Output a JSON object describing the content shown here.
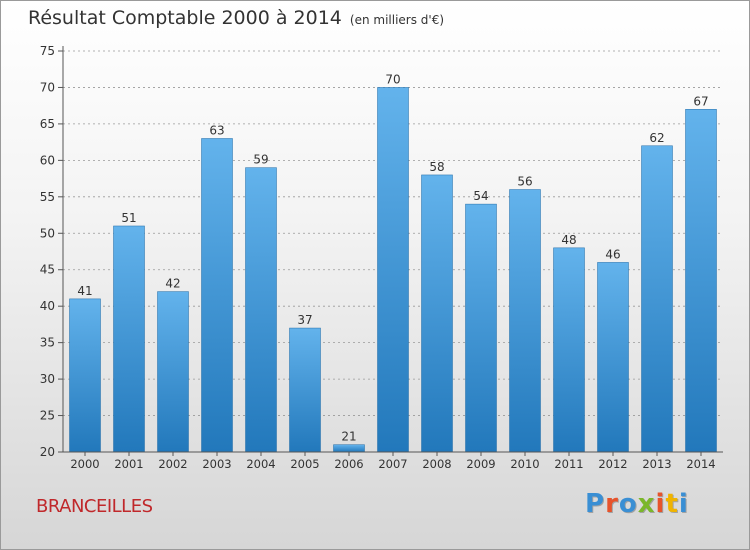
{
  "header": {
    "title": "Résultat Comptable 2000 à 2014",
    "unit": "(en milliers d'€)"
  },
  "footer": {
    "commune": "BRANCEILLES",
    "logo": "Proxiti",
    "logo_colors": [
      "#3a8fd4",
      "#e7532b",
      "#3a8fd4",
      "#7bb72a",
      "#e7532b",
      "#f0b400",
      "#3a8fd4"
    ]
  },
  "colors": {
    "bar_light": "#63b3ec",
    "bar_dark": "#2278bb",
    "axis": "#555555",
    "grid": "#999999"
  },
  "chart_data": {
    "type": "bar",
    "categories": [
      "2000",
      "2001",
      "2002",
      "2003",
      "2004",
      "2005",
      "2006",
      "2007",
      "2008",
      "2009",
      "2010",
      "2011",
      "2012",
      "2013",
      "2014"
    ],
    "values": [
      41,
      51,
      42,
      63,
      59,
      37,
      21,
      70,
      58,
      54,
      56,
      48,
      46,
      62,
      67
    ],
    "ylim": [
      20,
      75
    ],
    "yticks": [
      20,
      25,
      30,
      35,
      40,
      45,
      50,
      55,
      60,
      65,
      70,
      75
    ],
    "grid": "dashed-horizontal",
    "data_labels": true
  }
}
